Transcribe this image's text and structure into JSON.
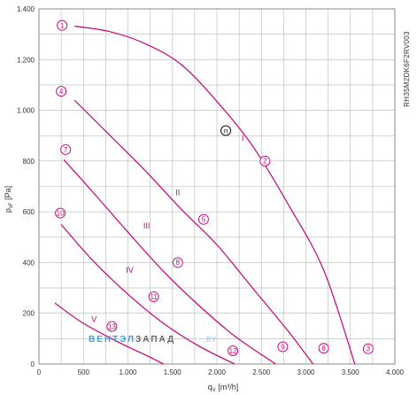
{
  "chart_data": {
    "type": "line",
    "title": "",
    "xlabel": "q",
    "xlabel_sub": "V",
    "xlabel_unit": " [m³/h]",
    "ylabel": "p",
    "ylabel_sub": "sF",
    "ylabel_unit": " [Pa]",
    "xlim": [
      0,
      4000
    ],
    "ylim": [
      0,
      1400
    ],
    "x_ticks": [
      {
        "v": 0,
        "label": "0"
      },
      {
        "v": 500,
        "label": "500"
      },
      {
        "v": 1000,
        "label": "1.000"
      },
      {
        "v": 1500,
        "label": "1.500"
      },
      {
        "v": 2000,
        "label": "2.000"
      },
      {
        "v": 2500,
        "label": "2.500"
      },
      {
        "v": 3000,
        "label": "3.000"
      },
      {
        "v": 3500,
        "label": "3.500"
      },
      {
        "v": 4000,
        "label": "4.000"
      }
    ],
    "y_ticks": [
      {
        "v": 0,
        "label": "0"
      },
      {
        "v": 200,
        "label": "200"
      },
      {
        "v": 400,
        "label": "400"
      },
      {
        "v": 600,
        "label": "600"
      },
      {
        "v": 800,
        "label": "800"
      },
      {
        "v": 1000,
        "label": "1.000"
      },
      {
        "v": 1200,
        "label": "1.200"
      },
      {
        "v": 1400,
        "label": "1.400"
      }
    ],
    "grid": true,
    "line_color": "#c8007a",
    "grid_color": "#b8b8b8",
    "model_label": "RH35M2DK6F2RV003",
    "series": [
      {
        "name": "I",
        "points": [
          [
            400,
            1332
          ],
          [
            800,
            1310
          ],
          [
            1200,
            1262
          ],
          [
            1600,
            1180
          ],
          [
            2000,
            1035
          ],
          [
            2400,
            860
          ],
          [
            2800,
            630
          ],
          [
            3200,
            370
          ],
          [
            3550,
            0
          ]
        ]
      },
      {
        "name": "II",
        "points": [
          [
            400,
            1040
          ],
          [
            800,
            900
          ],
          [
            1200,
            760
          ],
          [
            1600,
            610
          ],
          [
            2000,
            470
          ],
          [
            2400,
            300
          ],
          [
            2800,
            130
          ],
          [
            3080,
            0
          ]
        ]
      },
      {
        "name": "III",
        "points": [
          [
            280,
            805
          ],
          [
            600,
            680
          ],
          [
            1000,
            520
          ],
          [
            1400,
            365
          ],
          [
            1800,
            230
          ],
          [
            2200,
            110
          ],
          [
            2660,
            0
          ]
        ]
      },
      {
        "name": "IV",
        "points": [
          [
            250,
            550
          ],
          [
            600,
            410
          ],
          [
            1000,
            275
          ],
          [
            1400,
            160
          ],
          [
            1800,
            70
          ],
          [
            2200,
            0
          ]
        ]
      },
      {
        "name": "V",
        "points": [
          [
            180,
            240
          ],
          [
            500,
            160
          ],
          [
            900,
            85
          ],
          [
            1200,
            35
          ],
          [
            1400,
            0
          ]
        ]
      }
    ],
    "curve_labels": [
      {
        "text": "I",
        "x": 2290,
        "y": 880
      },
      {
        "text": "II",
        "x": 1560,
        "y": 665
      },
      {
        "text": "III",
        "x": 1210,
        "y": 535
      },
      {
        "text": "IV",
        "x": 1020,
        "y": 360
      },
      {
        "text": "V",
        "x": 620,
        "y": 165
      }
    ],
    "markers": [
      {
        "text": "1",
        "x": 260,
        "y": 1335
      },
      {
        "text": "2",
        "x": 2540,
        "y": 800
      },
      {
        "text": "3",
        "x": 3700,
        "y": 60
      },
      {
        "text": "4",
        "x": 250,
        "y": 1075
      },
      {
        "text": "5",
        "x": 1850,
        "y": 570
      },
      {
        "text": "6",
        "x": 3200,
        "y": 62
      },
      {
        "text": "7",
        "x": 300,
        "y": 845
      },
      {
        "text": "8",
        "x": 1560,
        "y": 400
      },
      {
        "text": "9",
        "x": 2740,
        "y": 68
      },
      {
        "text": "10",
        "x": 240,
        "y": 595
      },
      {
        "text": "11",
        "x": 1290,
        "y": 265
      },
      {
        "text": "12",
        "x": 2180,
        "y": 52
      },
      {
        "text": "13",
        "x": 820,
        "y": 148
      }
    ],
    "operating_point": {
      "text": "n",
      "x": 2100,
      "y": 920
    }
  },
  "watermark": {
    "part1": "ВЕНТЭЛ",
    "part2": "ЗАПАД",
    "part3": ".BY"
  }
}
